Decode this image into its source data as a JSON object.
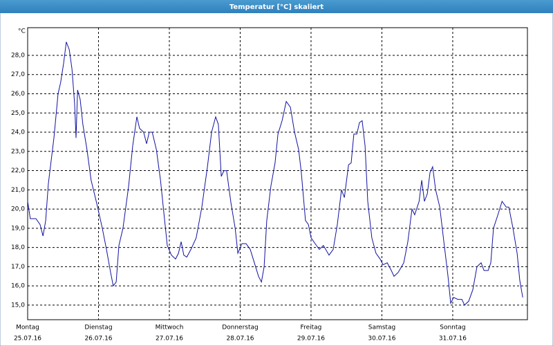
{
  "chart_data": {
    "type": "line",
    "title": "Temperatur [°C] skaliert",
    "y_unit": "°C",
    "x": [
      0,
      0.9,
      2.8,
      4.2,
      5.2,
      6.1,
      7.0,
      8.9,
      10.3,
      11.2,
      12.2,
      13.1,
      14.1,
      15.0,
      15.9,
      16.4,
      16.9,
      17.8,
      18.7,
      20.1,
      21.5,
      23.4,
      25.3,
      26.7,
      28.1,
      29.0,
      30.0,
      30.9,
      32.3,
      34.2,
      35.6,
      37.0,
      37.9,
      39.3,
      40.3,
      41.2,
      42.2,
      43.6,
      45.0,
      46.4,
      47.3,
      48.7,
      50.1,
      51.1,
      52.0,
      52.9,
      53.9,
      55.3,
      57.1,
      59.0,
      60.9,
      62.3,
      63.7,
      64.6,
      65.6,
      66.5,
      67.4,
      68.9,
      70.3,
      71.2,
      72.6,
      74.0,
      75.4,
      76.8,
      78.2,
      79.2,
      80.1,
      81.0,
      82.4,
      83.8,
      84.8,
      86.2,
      87.6,
      89.0,
      90.4,
      91.8,
      92.7,
      94.1,
      95.1,
      96.0,
      97.4,
      98.8,
      100.2,
      102.1,
      103.5,
      104.9,
      106.3,
      107.3,
      108.7,
      109.6,
      110.5,
      111.5,
      112.4,
      113.3,
      114.3,
      115.2,
      116.6,
      118.0,
      119.4,
      120.4,
      121.8,
      123.2,
      124.1,
      125.5,
      127.4,
      128.8,
      130.2,
      131.1,
      132.6,
      133.5,
      134.4,
      135.4,
      136.3,
      137.2,
      138.2,
      139.6,
      141.0,
      142.4,
      143.3,
      144.3,
      145.7,
      147.1,
      148.0,
      149.4,
      150.8,
      152.2,
      153.6,
      154.6,
      156.0,
      156.9,
      157.8,
      159.3,
      160.7,
      162.1,
      163.0,
      164.4,
      165.8,
      166.7,
      167.7
    ],
    "series": [
      {
        "name": "Temperatur",
        "color": "#1010a0",
        "values": [
          20.4,
          19.5,
          19.5,
          19.2,
          18.6,
          19.4,
          21.3,
          23.7,
          26.0,
          26.6,
          27.6,
          28.7,
          28.3,
          27.3,
          25.5,
          23.7,
          26.2,
          25.7,
          24.4,
          23.1,
          21.5,
          20.3,
          19.0,
          17.9,
          16.7,
          16.0,
          16.2,
          18.1,
          19.0,
          21.2,
          23.3,
          24.8,
          24.2,
          24.0,
          23.4,
          24.0,
          24.0,
          23.1,
          21.5,
          19.4,
          18.1,
          17.6,
          17.4,
          17.7,
          18.3,
          17.6,
          17.5,
          17.9,
          18.5,
          20.1,
          22.2,
          24.0,
          24.8,
          24.4,
          21.7,
          22.0,
          22.0,
          20.3,
          19.0,
          17.7,
          18.2,
          18.2,
          17.9,
          17.2,
          16.5,
          16.2,
          17.0,
          19.4,
          21.2,
          22.4,
          23.9,
          24.6,
          25.6,
          25.3,
          24.0,
          23.1,
          21.9,
          19.4,
          19.2,
          18.5,
          18.2,
          17.9,
          18.1,
          17.6,
          17.9,
          19.2,
          21.0,
          20.6,
          22.3,
          22.4,
          23.9,
          23.9,
          24.5,
          24.6,
          23.3,
          20.4,
          18.5,
          17.7,
          17.4,
          17.1,
          17.2,
          16.8,
          16.5,
          16.7,
          17.2,
          18.3,
          20.0,
          19.7,
          20.4,
          21.5,
          20.4,
          20.8,
          21.9,
          22.2,
          21.0,
          20.1,
          18.3,
          16.5,
          15.1,
          15.4,
          15.3,
          15.3,
          15.0,
          15.2,
          15.8,
          17.0,
          17.2,
          16.8,
          16.8,
          17.2,
          19.0,
          19.7,
          20.4,
          20.1,
          20.1,
          19.0,
          17.7,
          16.3,
          15.4
        ]
      }
    ],
    "xlim": [
      0,
      169.3
    ],
    "xticks": [
      {
        "value": 0,
        "label": "Montag",
        "date": "25.07.16"
      },
      {
        "value": 24,
        "label": "Dienstag",
        "date": "26.07.16"
      },
      {
        "value": 48,
        "label": "Mittwoch",
        "date": "27.07.16"
      },
      {
        "value": 72,
        "label": "Donnerstag",
        "date": "28.07.16"
      },
      {
        "value": 96,
        "label": "Freitag",
        "date": "29.07.16"
      },
      {
        "value": 120,
        "label": "Samstag",
        "date": "30.07.16"
      },
      {
        "value": 144,
        "label": "Sonntag",
        "date": "31.07.16"
      }
    ],
    "ylim": [
      14.24,
      29.44
    ],
    "yticks": [
      {
        "value": 15,
        "label": "15,0"
      },
      {
        "value": 16,
        "label": "16,0"
      },
      {
        "value": 17,
        "label": "17,0"
      },
      {
        "value": 18,
        "label": "18,0"
      },
      {
        "value": 19,
        "label": "19,0"
      },
      {
        "value": 20,
        "label": "20,0"
      },
      {
        "value": 21,
        "label": "21,0"
      },
      {
        "value": 22,
        "label": "22,0"
      },
      {
        "value": 23,
        "label": "23,0"
      },
      {
        "value": 24,
        "label": "24,0"
      },
      {
        "value": 25,
        "label": "25,0"
      },
      {
        "value": 26,
        "label": "26,0"
      },
      {
        "value": 27,
        "label": "27,0"
      },
      {
        "value": 28,
        "label": "28,0"
      }
    ],
    "grid": true
  }
}
